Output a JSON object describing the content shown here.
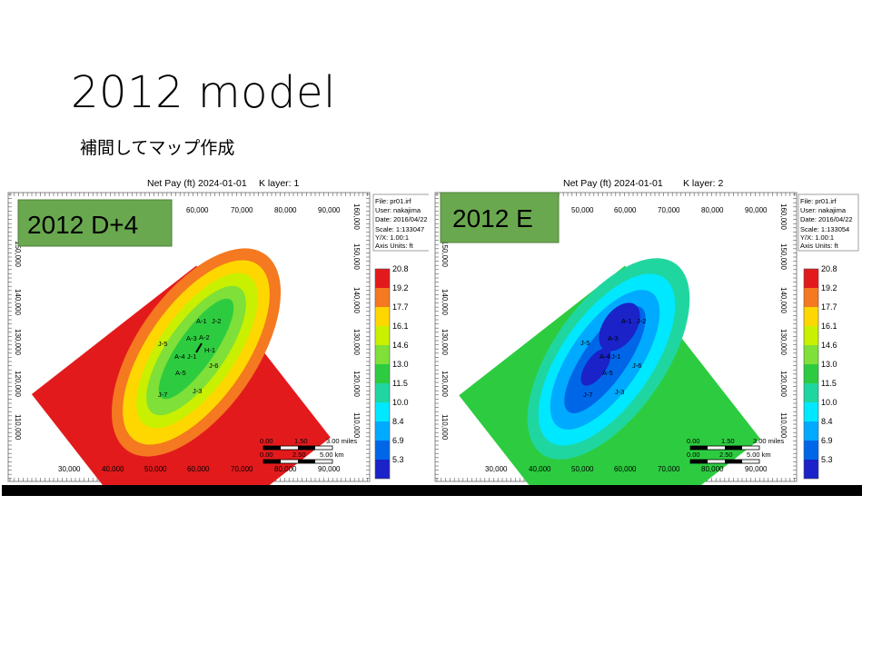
{
  "slide": {
    "title": "2012 model",
    "subtitle": "補間してマップ作成"
  },
  "panels": [
    {
      "overlay_label": "2012 D+4",
      "header": "Net Pay (ft) 2024-01-01",
      "layer": "K layer: 1",
      "info": [
        "File: pr01.irf",
        "User:  nakajima",
        "Date: 2016/04/22",
        "Scale: 1:133047",
        "Y/X: 1.00:1",
        "Axis Units: ft"
      ],
      "x_top_ticks": [
        "60,000",
        "70,000",
        "80,000",
        "90,000"
      ],
      "x_bottom_ticks": [
        "30,000",
        "40,000",
        "50,000",
        "60,000",
        "70,000",
        "80,000",
        "90,000"
      ],
      "y_left_ticks": [
        "150,000",
        "140,000",
        "130,000",
        "120,000",
        "110,000"
      ],
      "y_right_ticks": [
        "160,000",
        "150,000",
        "140,000",
        "130,000",
        "120,000",
        "110,000"
      ],
      "scale_miles": [
        "0.00",
        "1.50",
        "3.00 miles"
      ],
      "scale_km": [
        "0.00",
        "2.50",
        "5.00 km"
      ],
      "wells": [
        "A-1",
        "J-2",
        "A-3",
        "A-2",
        "J-5",
        "H-1",
        "A-4",
        "J-1",
        "J-6",
        "A-5",
        "J-7",
        "J-3"
      ]
    },
    {
      "overlay_label": "2012 E",
      "header": "Net Pay (ft) 2024-01-01",
      "layer": "K layer: 2",
      "info": [
        "File: pr01.irf",
        "User:  nakajima",
        "Date: 2016/04/22",
        "Scale: 1:133054",
        "Y/X: 1.00:1",
        "Axis Units: ft"
      ],
      "x_top_ticks": [
        "50,000",
        "60,000",
        "70,000",
        "80,000",
        "90,000"
      ],
      "x_bottom_ticks": [
        "30,000",
        "40,000",
        "50,000",
        "60,000",
        "70,000",
        "80,000",
        "90,000"
      ],
      "y_left_ticks": [
        "150,000",
        "140,000",
        "130,000",
        "120,000",
        "110,000"
      ],
      "y_right_ticks": [
        "160,000",
        "150,000",
        "140,000",
        "130,000",
        "120,000",
        "110,000"
      ],
      "scale_miles": [
        "0.00",
        "1.50",
        "3.00 miles"
      ],
      "scale_km": [
        "0.00",
        "2.50",
        "5.00 km"
      ],
      "wells": [
        "A-1",
        "J-2",
        "A-3",
        "J-5",
        "A-4",
        "J-1",
        "J-6",
        "A-5",
        "J-7",
        "J-3"
      ]
    }
  ],
  "chart_data": [
    {
      "type": "heatmap",
      "title": "Net Pay (ft) 2024-01-01",
      "subtitle": "K layer: 1",
      "xlim": [
        25000,
        97000
      ],
      "ylim": [
        102000,
        163000
      ],
      "colorbar": {
        "values": [
          20.8,
          19.2,
          17.7,
          16.1,
          14.6,
          13.0,
          11.5,
          10.0,
          8.4,
          6.9,
          5.3
        ],
        "colors": [
          "#e31a1c",
          "#f47920",
          "#ffd700",
          "#c8f000",
          "#7ee038",
          "#2dcc40",
          "#20d6a0",
          "#00e8ff",
          "#00aaff",
          "#0066e8",
          "#1a22c8"
        ]
      },
      "field_range": [
        14.6,
        20.8
      ]
    },
    {
      "type": "heatmap",
      "title": "Net Pay (ft) 2024-01-01",
      "subtitle": "K layer: 2",
      "xlim": [
        25000,
        97000
      ],
      "ylim": [
        102000,
        163000
      ],
      "colorbar": {
        "values": [
          20.8,
          19.2,
          17.7,
          16.1,
          14.6,
          13.0,
          11.5,
          10.0,
          8.4,
          6.9,
          5.3
        ],
        "colors": [
          "#e31a1c",
          "#f47920",
          "#ffd700",
          "#c8f000",
          "#7ee038",
          "#2dcc40",
          "#20d6a0",
          "#00e8ff",
          "#00aaff",
          "#0066e8",
          "#1a22c8"
        ]
      },
      "field_range": [
        5.3,
        13.0
      ]
    }
  ],
  "colors": {
    "label_box_bg": "#6aa84f",
    "label_box_border": "#4f7f3a"
  }
}
